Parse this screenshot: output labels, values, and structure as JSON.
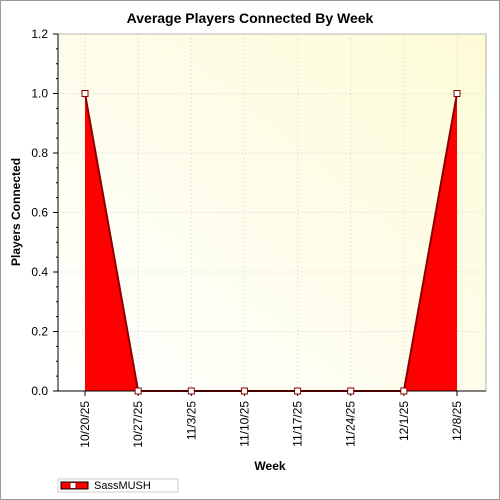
{
  "chart_data": {
    "type": "area",
    "title": "Average Players Connected By Week",
    "xlabel": "Week",
    "ylabel": "Players Connected",
    "categories": [
      "10/20/25",
      "10/27/25",
      "11/3/25",
      "11/10/25",
      "11/17/25",
      "11/24/25",
      "12/1/25",
      "12/8/25"
    ],
    "series": [
      {
        "name": "SassMUSH",
        "values": [
          1.0,
          0.0,
          0.0,
          0.0,
          0.0,
          0.0,
          0.0,
          1.0
        ],
        "color": "#ff0000"
      }
    ],
    "ylim": [
      0,
      1.2
    ],
    "yticks": [
      "0.0",
      "0.2",
      "0.4",
      "0.6",
      "0.8",
      "1.0",
      "1.2"
    ],
    "grid": true,
    "legend_position": "bottom-left",
    "colors": {
      "plot_bg_start": "#ffffff",
      "plot_bg_end": "#fdfbd6",
      "area_fill": "#ff0000",
      "line": "#8b0000",
      "marker_fill": "#ffffff",
      "marker_stroke": "#8b0000"
    }
  }
}
